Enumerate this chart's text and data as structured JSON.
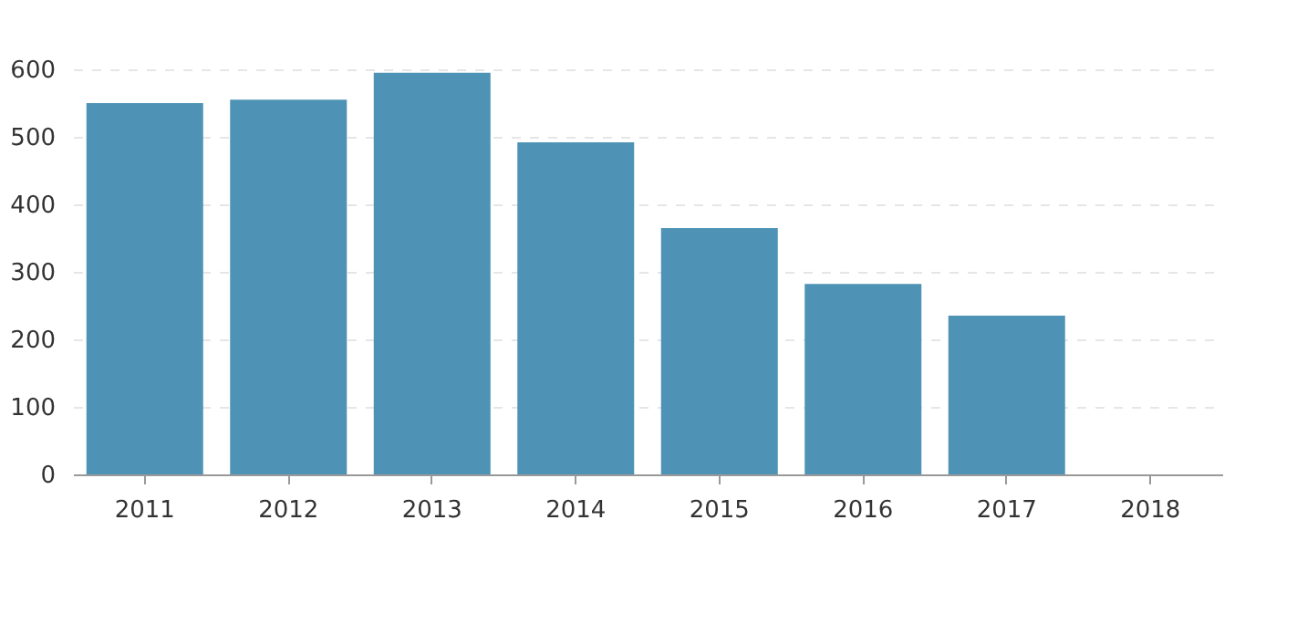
{
  "chart_data": {
    "type": "bar",
    "categories": [
      "2011",
      "2012",
      "2013",
      "2014",
      "2015",
      "2016",
      "2017",
      "2018"
    ],
    "series": [
      {
        "color": "#4e93b5",
        "values": [
          550,
          555,
          595,
          492,
          365,
          282,
          235,
          null
        ]
      }
    ],
    "ylim": [
      0,
      600
    ],
    "yticks": [
      0,
      100,
      200,
      300,
      400,
      500,
      600
    ],
    "grid": "y"
  }
}
